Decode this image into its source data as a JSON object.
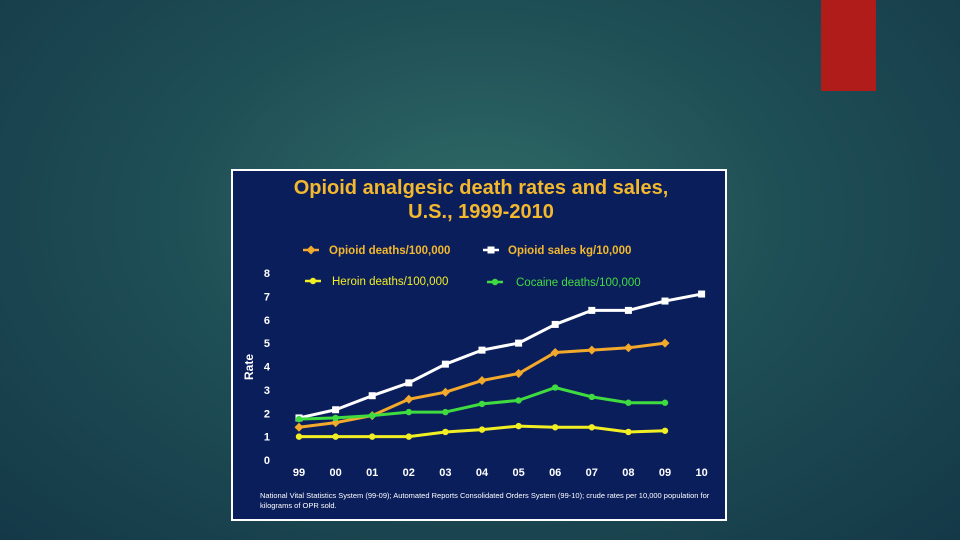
{
  "slide": {
    "accent_color": "#b01c19",
    "background_color": "#1f4f56"
  },
  "chart_data": {
    "type": "line",
    "title_line1": "Opioid analgesic death rates and sales,",
    "title_line2": "U.S., 1999-2010",
    "xlabel": "",
    "ylabel": "Rate",
    "ylim": [
      0,
      8
    ],
    "yticks": [
      "0",
      "1",
      "2",
      "3",
      "4",
      "5",
      "6",
      "7",
      "8"
    ],
    "categories": [
      "99",
      "00",
      "01",
      "02",
      "03",
      "04",
      "05",
      "06",
      "07",
      "08",
      "09",
      "10"
    ],
    "series": [
      {
        "name": "Opioid deaths/100,000",
        "color": "#f3a92b",
        "marker": "diamond",
        "x": [
          0,
          1,
          2,
          3,
          4,
          5,
          6,
          7,
          8,
          9,
          10
        ],
        "values": [
          1.4,
          1.6,
          1.9,
          2.6,
          2.9,
          3.4,
          3.7,
          4.6,
          4.7,
          4.8,
          5.0
        ]
      },
      {
        "name": "Opioid sales kg/10,000",
        "color": "#ffffff",
        "marker": "square",
        "x": [
          0,
          1,
          2,
          3,
          4,
          5,
          6,
          7,
          8,
          9,
          10,
          11
        ],
        "values": [
          1.8,
          2.15,
          2.75,
          3.3,
          4.1,
          4.7,
          5.0,
          5.8,
          6.4,
          6.4,
          6.8,
          7.1
        ]
      },
      {
        "name": "Heroin deaths/100,000",
        "color": "#f1ee24",
        "marker": "circle",
        "x": [
          0,
          1,
          2,
          3,
          4,
          5,
          6,
          7,
          8,
          9,
          10
        ],
        "values": [
          1.0,
          1.0,
          1.0,
          1.0,
          1.2,
          1.3,
          1.45,
          1.4,
          1.4,
          1.2,
          1.25
        ]
      },
      {
        "name": "Cocaine deaths/100,000",
        "color": "#3fdc3f",
        "marker": "circle",
        "x": [
          0,
          1,
          2,
          3,
          4,
          5,
          6,
          7,
          8,
          9,
          10
        ],
        "values": [
          1.75,
          1.8,
          1.9,
          2.05,
          2.05,
          2.4,
          2.55,
          3.1,
          2.7,
          2.45,
          2.45
        ]
      }
    ],
    "legend": "top",
    "grid": false,
    "source": "National Vital Statistics System (99-09); Automated Reports Consolidated Orders System (99-10); crude rates per 10,000 population for  kilograms of OPR sold."
  }
}
